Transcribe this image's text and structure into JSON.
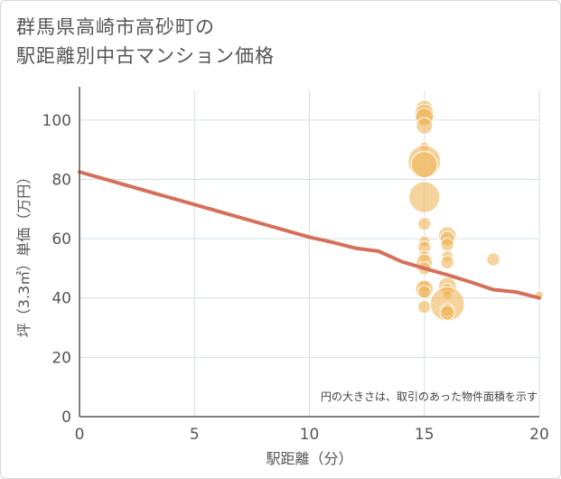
{
  "chart_data": {
    "type": "scatter",
    "title_line1": "群馬県高崎市高砂町の",
    "title_line2": "駅距離別中古マンション価格",
    "xlabel": "駅距離（分）",
    "ylabel": "坪（3.3㎡）単価（万円）",
    "annotation": "円の大きさは、取引のあった物件面積を示す",
    "xlim": [
      0,
      20
    ],
    "ylim": [
      0,
      110
    ],
    "x_ticks": [
      0,
      5,
      10,
      15,
      20
    ],
    "y_ticks": [
      0,
      20,
      40,
      60,
      80,
      100
    ],
    "x_tick_labels": [
      "0",
      "5",
      "10",
      "15",
      "20"
    ],
    "y_tick_labels": [
      "0",
      "20",
      "40",
      "60",
      "80",
      "100"
    ],
    "colors": {
      "bubble": "#f0b65a",
      "trend": "#d4705a",
      "grid": "#d5dde5",
      "axis": "#555555"
    },
    "points": [
      {
        "x": 15,
        "y": 104,
        "size": 1.0
      },
      {
        "x": 15,
        "y": 102,
        "size": 1.2
      },
      {
        "x": 15,
        "y": 101,
        "size": 1.1
      },
      {
        "x": 15,
        "y": 98,
        "size": 1.0
      },
      {
        "x": 15,
        "y": 91,
        "size": 0.6
      },
      {
        "x": 15,
        "y": 86,
        "size": 2.0
      },
      {
        "x": 15,
        "y": 85,
        "size": 1.6
      },
      {
        "x": 15,
        "y": 74,
        "size": 1.9
      },
      {
        "x": 15,
        "y": 65,
        "size": 0.8
      },
      {
        "x": 15,
        "y": 59,
        "size": 0.7
      },
      {
        "x": 15,
        "y": 57,
        "size": 0.8
      },
      {
        "x": 15,
        "y": 54,
        "size": 0.7
      },
      {
        "x": 15,
        "y": 52,
        "size": 1.0
      },
      {
        "x": 15,
        "y": 50,
        "size": 0.8
      },
      {
        "x": 15,
        "y": 44,
        "size": 0.7
      },
      {
        "x": 15,
        "y": 43,
        "size": 1.1
      },
      {
        "x": 15,
        "y": 42,
        "size": 0.8
      },
      {
        "x": 15,
        "y": 37,
        "size": 0.8
      },
      {
        "x": 16,
        "y": 61,
        "size": 1.1
      },
      {
        "x": 16,
        "y": 60,
        "size": 0.9
      },
      {
        "x": 16,
        "y": 58,
        "size": 0.8
      },
      {
        "x": 16,
        "y": 54,
        "size": 0.7
      },
      {
        "x": 16,
        "y": 52,
        "size": 0.8
      },
      {
        "x": 16,
        "y": 44,
        "size": 1.1
      },
      {
        "x": 16,
        "y": 43,
        "size": 0.7
      },
      {
        "x": 16,
        "y": 41,
        "size": 0.6
      },
      {
        "x": 16,
        "y": 38,
        "size": 2.1
      },
      {
        "x": 16,
        "y": 36,
        "size": 0.8
      },
      {
        "x": 16,
        "y": 35,
        "size": 0.9
      },
      {
        "x": 18,
        "y": 53,
        "size": 0.8
      },
      {
        "x": 20,
        "y": 41,
        "size": 0.5
      }
    ],
    "trend": {
      "x": [
        0,
        1,
        2,
        3,
        4,
        5,
        6,
        7,
        8,
        9,
        10,
        11,
        12,
        13,
        14,
        15,
        16,
        17,
        18,
        19,
        20
      ],
      "y": [
        82.5,
        80.3,
        78.1,
        75.9,
        73.7,
        71.5,
        69.3,
        67.1,
        64.9,
        62.7,
        60.5,
        58.8,
        56.8,
        55.8,
        52.3,
        50.0,
        47.8,
        45.4,
        42.8,
        42.0,
        40.0
      ]
    }
  }
}
